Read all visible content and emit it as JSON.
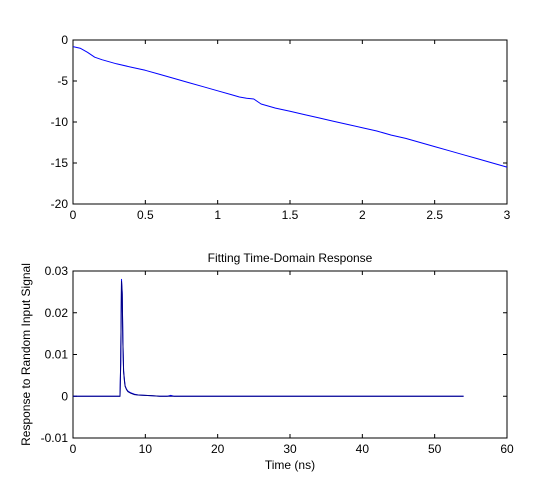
{
  "chart_data": [
    {
      "type": "line",
      "title": "",
      "xlabel": "",
      "ylabel": "",
      "xlim": [
        0,
        3
      ],
      "ylim": [
        -20,
        0
      ],
      "xticks": [
        0,
        0.5,
        1,
        1.5,
        2,
        2.5,
        3
      ],
      "xtick_labels": [
        "0",
        "0.5",
        "1",
        "1.5",
        "2",
        "2.5",
        "3"
      ],
      "yticks": [
        0,
        -5,
        -10,
        -15,
        -20
      ],
      "ytick_labels": [
        "0",
        "-5",
        "-10",
        "-15",
        "-20"
      ],
      "grid": false,
      "series": [
        {
          "color": "#0000ff",
          "x": [
            0,
            0.05,
            0.1,
            0.15,
            0.2,
            0.3,
            0.4,
            0.5,
            0.6,
            0.7,
            0.8,
            0.9,
            1.0,
            1.1,
            1.15,
            1.2,
            1.25,
            1.3,
            1.4,
            1.5,
            1.6,
            1.7,
            1.8,
            1.9,
            2.0,
            2.1,
            2.2,
            2.3,
            2.4,
            2.5,
            2.6,
            2.7,
            2.8,
            2.9,
            3.0
          ],
          "y": [
            -0.8,
            -1.0,
            -1.5,
            -2.1,
            -2.4,
            -2.9,
            -3.3,
            -3.7,
            -4.2,
            -4.7,
            -5.2,
            -5.7,
            -6.2,
            -6.7,
            -6.95,
            -7.1,
            -7.2,
            -7.8,
            -8.3,
            -8.7,
            -9.1,
            -9.5,
            -9.9,
            -10.3,
            -10.7,
            -11.1,
            -11.6,
            -12.0,
            -12.5,
            -13.0,
            -13.5,
            -14.0,
            -14.5,
            -15.0,
            -15.5
          ]
        }
      ]
    },
    {
      "type": "line",
      "title": "Fitting Time-Domain Response",
      "xlabel": "Time (ns)",
      "ylabel": "Response to Random Input Signal",
      "xlim": [
        0,
        60
      ],
      "ylim": [
        -0.01,
        0.03
      ],
      "xticks": [
        0,
        10,
        20,
        30,
        40,
        50,
        60
      ],
      "xtick_labels": [
        "0",
        "10",
        "20",
        "30",
        "40",
        "50",
        "60"
      ],
      "yticks": [
        0.03,
        0.02,
        0.01,
        0,
        -0.01
      ],
      "ytick_labels": [
        "0.03",
        "0.02",
        "0.01",
        "0",
        "-0.01"
      ],
      "grid": false,
      "series": [
        {
          "color": "#0000ff",
          "x": [
            0,
            6.5,
            6.6,
            6.7,
            6.8,
            6.9,
            7.0,
            7.1,
            7.2,
            7.4,
            7.6,
            8.0,
            8.5,
            9.0,
            10.0,
            11.0,
            12.0,
            13.0,
            13.5,
            14.0,
            54.0
          ],
          "y": [
            0,
            0,
            0.008,
            0.028,
            0.025,
            0.013,
            0.006,
            0.004,
            0.0025,
            0.0017,
            0.0012,
            0.0008,
            0.0005,
            0.0003,
            0.0002,
            0.0001,
            0,
            0,
            0.0002,
            0,
            0
          ]
        },
        {
          "color": "#000080",
          "x": [
            0,
            6.5,
            6.6,
            6.7,
            6.8,
            6.9,
            7.0,
            7.1,
            7.2,
            7.4,
            7.6,
            8.0,
            8.5,
            9.0,
            10.0,
            11.0,
            12.0,
            54.0
          ],
          "y": [
            0,
            0,
            0.008,
            0.0275,
            0.0245,
            0.0128,
            0.006,
            0.0038,
            0.0024,
            0.0016,
            0.0011,
            0.0007,
            0.0004,
            0.0003,
            0.0002,
            0.0001,
            0,
            0
          ]
        }
      ]
    }
  ]
}
